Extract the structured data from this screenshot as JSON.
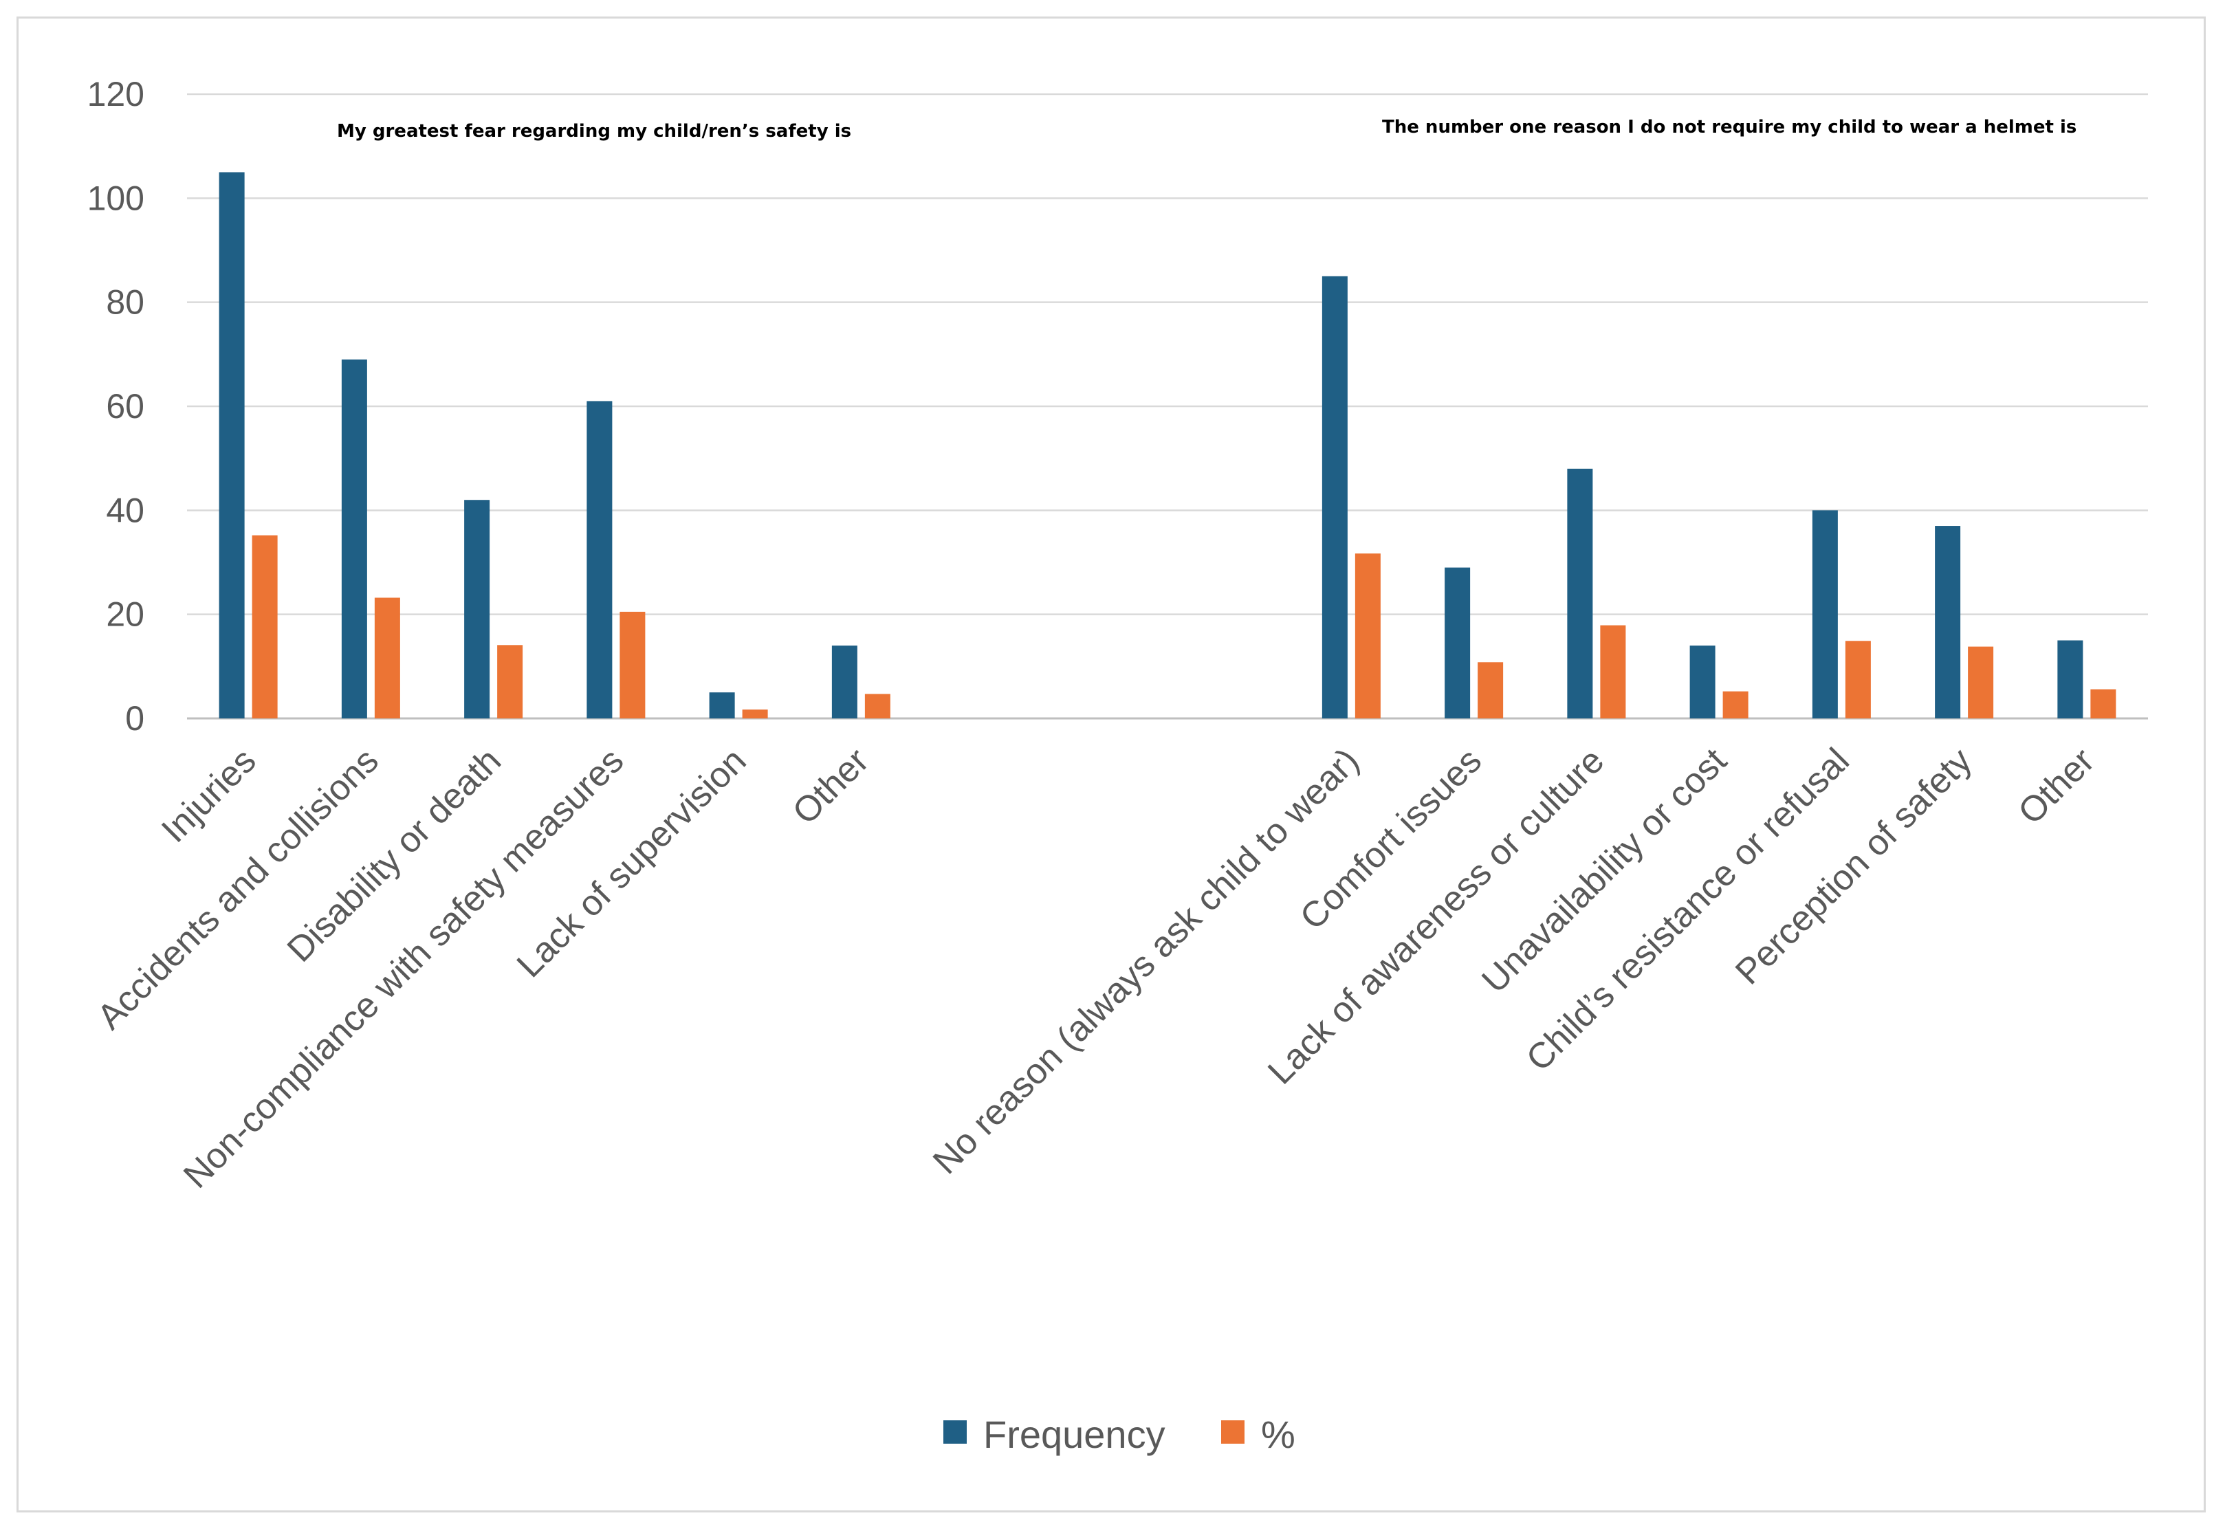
{
  "chart_data": {
    "type": "bar",
    "title": "",
    "xlabel": "",
    "ylabel": "",
    "ylim": [
      0,
      120
    ],
    "yticks": [
      0,
      20,
      40,
      60,
      80,
      100,
      120
    ],
    "grid": true,
    "legend_position": "bottom",
    "colors": {
      "Frequency": "#1f5f85",
      "%": "#ec7434"
    },
    "annotations": [
      "My greatest fear regarding my child/ren’s safety is",
      "The number one reason I do not require my child to wear a helmet is"
    ],
    "categories": [
      "Injuries",
      "Accidents and collisions",
      "Disability or death",
      "Non-compliance with safety measures",
      "Lack of supervision",
      "Other",
      "",
      "",
      "",
      "No reason (always ask child to wear)",
      "Comfort issues",
      "Lack of awareness or culture",
      "Unavailability or cost",
      "Child’s resistance or refusal",
      "Perception of safety",
      "Other"
    ],
    "series": [
      {
        "name": "Frequency",
        "values": [
          105,
          69,
          42,
          61,
          5,
          14,
          null,
          null,
          null,
          85,
          29,
          48,
          14,
          40,
          37,
          15
        ]
      },
      {
        "name": "%",
        "values": [
          35.2,
          23.2,
          14.1,
          20.5,
          1.7,
          4.7,
          null,
          null,
          null,
          31.7,
          10.8,
          17.9,
          5.2,
          14.9,
          13.8,
          5.6
        ]
      }
    ]
  }
}
